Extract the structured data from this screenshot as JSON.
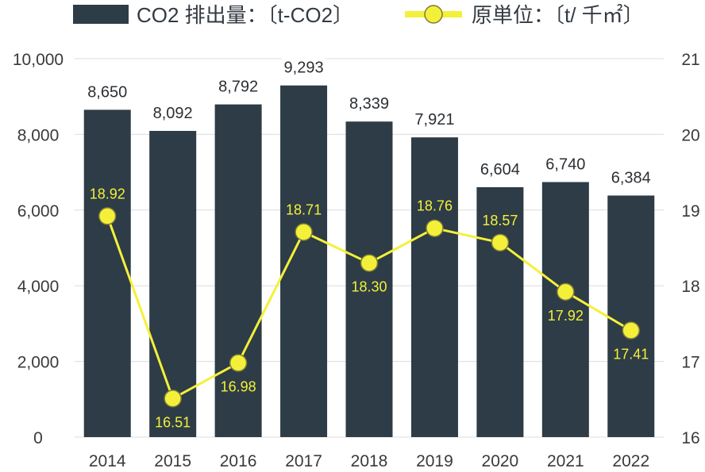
{
  "legend": {
    "bar_label": "CO2 排出量：〔t-CO2〕",
    "line_label": "原単位：〔t/ 千㎡〕"
  },
  "colors": {
    "bar": "#2d3c46",
    "line": "#f4f03a",
    "marker_stroke": "#7a7a3a",
    "grid": "#dcdcdc"
  },
  "chart_data": {
    "type": "bar",
    "categories": [
      "2014",
      "2015",
      "2016",
      "2017",
      "2018",
      "2019",
      "2020",
      "2021",
      "2022"
    ],
    "series": [
      {
        "name": "CO2 排出量：〔t-CO2〕",
        "type": "bar",
        "axis": "left",
        "values": [
          8650,
          8092,
          8792,
          9293,
          8339,
          7921,
          6604,
          6740,
          6384
        ],
        "labels": [
          "8,650",
          "8,092",
          "8,792",
          "9,293",
          "8,339",
          "7,921",
          "6,604",
          "6,740",
          "6,384"
        ]
      },
      {
        "name": "原単位：〔t/ 千㎡〕",
        "type": "line",
        "axis": "right",
        "values": [
          18.92,
          16.51,
          16.98,
          18.71,
          18.3,
          18.76,
          18.57,
          17.92,
          17.41
        ],
        "labels": [
          "18.92",
          "16.51",
          "16.98",
          "18.71",
          "18.30",
          "18.76",
          "18.57",
          "17.92",
          "17.41"
        ],
        "label_position": [
          "above",
          "below",
          "below",
          "above",
          "below",
          "above",
          "above",
          "below",
          "below"
        ]
      }
    ],
    "y_left": {
      "lim": [
        0,
        10000
      ],
      "ticks": [
        0,
        2000,
        4000,
        6000,
        8000,
        10000
      ],
      "tick_labels": [
        "0",
        "2,000",
        "4,000",
        "6,000",
        "8,000",
        "10,000"
      ]
    },
    "y_right": {
      "lim": [
        16,
        21
      ],
      "ticks": [
        16,
        17,
        18,
        19,
        20,
        21
      ],
      "tick_labels": [
        "16",
        "17",
        "18",
        "19",
        "20",
        "21"
      ]
    },
    "grid": true,
    "legend_position": "top"
  }
}
